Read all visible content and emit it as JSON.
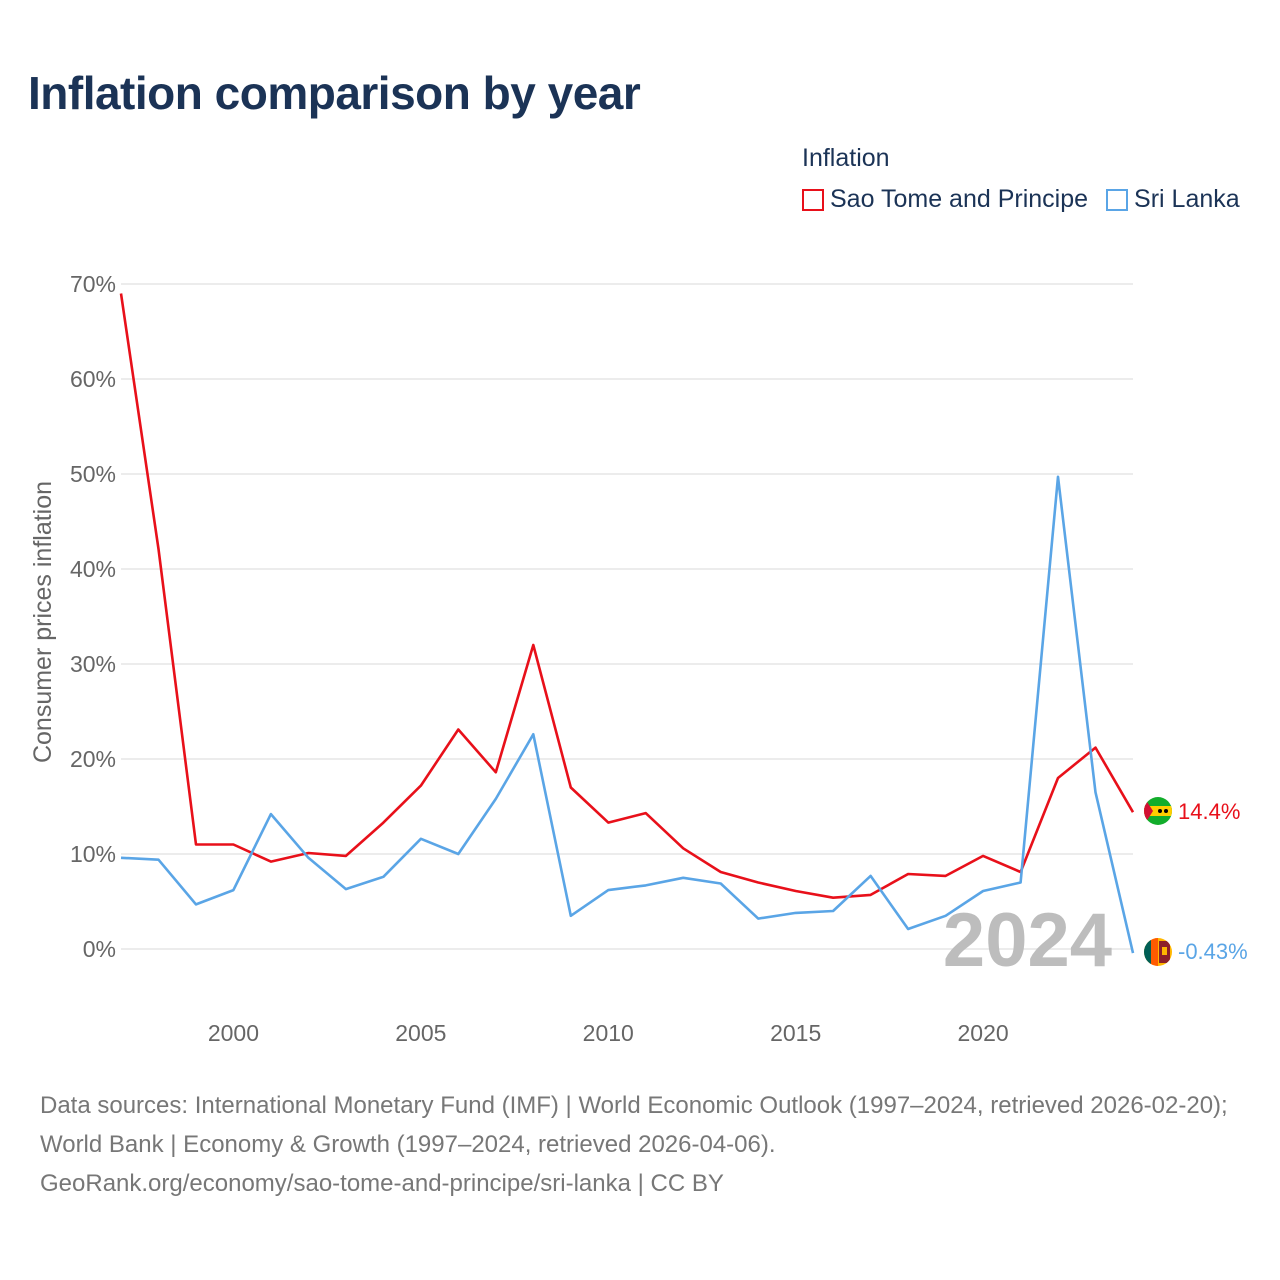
{
  "title": "Inflation comparison by year",
  "legend": {
    "title": "Inflation",
    "items": [
      {
        "label": "Sao Tome and Principe",
        "color": "#e8101a"
      },
      {
        "label": "Sri Lanka",
        "color": "#5aa5e6"
      }
    ]
  },
  "year_watermark": "2024",
  "end_labels": {
    "stp": "14.4%",
    "lka": "-0.43%"
  },
  "sources": {
    "line1": "Data sources: International Monetary Fund (IMF) | World Economic Outlook (1997–2024, retrieved 2026-02-20); World Bank | Economy & Growth (1997–2024, retrieved 2026-04-06).",
    "line2": "GeoRank.org/economy/sao-tome-and-principe/sri-lanka | CC BY"
  },
  "colors": {
    "stp": "#e8101a",
    "lka": "#5aa5e6",
    "text": "#1b3356",
    "axis": "#666666",
    "grid": "#e6e6e6",
    "watermark": "#bdbdbd"
  },
  "chart_data": {
    "type": "line",
    "ylabel": "Consumer prices inflation",
    "xlabel": "",
    "xlim": [
      1997,
      2024
    ],
    "ylim": [
      0,
      70
    ],
    "x_ticks": [
      2000,
      2005,
      2010,
      2015,
      2020
    ],
    "y_ticks": [
      0,
      10,
      20,
      30,
      40,
      50,
      60,
      70
    ],
    "y_tick_labels": [
      "0%",
      "10%",
      "20%",
      "30%",
      "40%",
      "50%",
      "60%",
      "70%"
    ],
    "grid": true,
    "x": [
      1997,
      1998,
      1999,
      2000,
      2001,
      2002,
      2003,
      2004,
      2005,
      2006,
      2007,
      2008,
      2009,
      2010,
      2011,
      2012,
      2013,
      2014,
      2015,
      2016,
      2017,
      2018,
      2019,
      2020,
      2021,
      2022,
      2023,
      2024
    ],
    "series": [
      {
        "name": "Sao Tome and Principe",
        "key": "stp",
        "values": [
          69.0,
          42.1,
          11.0,
          11.0,
          9.2,
          10.1,
          9.8,
          13.3,
          17.2,
          23.1,
          18.6,
          32.0,
          17.0,
          13.3,
          14.3,
          10.6,
          8.1,
          7.0,
          6.1,
          5.4,
          5.7,
          7.9,
          7.7,
          9.8,
          8.1,
          18.0,
          21.2,
          14.4
        ]
      },
      {
        "name": "Sri Lanka",
        "key": "lka",
        "values": [
          9.6,
          9.4,
          4.7,
          6.2,
          14.2,
          9.6,
          6.3,
          7.6,
          11.6,
          10.0,
          15.8,
          22.6,
          3.5,
          6.2,
          6.7,
          7.5,
          6.9,
          3.2,
          3.8,
          4.0,
          7.7,
          2.1,
          3.5,
          6.1,
          7.0,
          49.7,
          16.5,
          -0.43
        ]
      }
    ]
  }
}
